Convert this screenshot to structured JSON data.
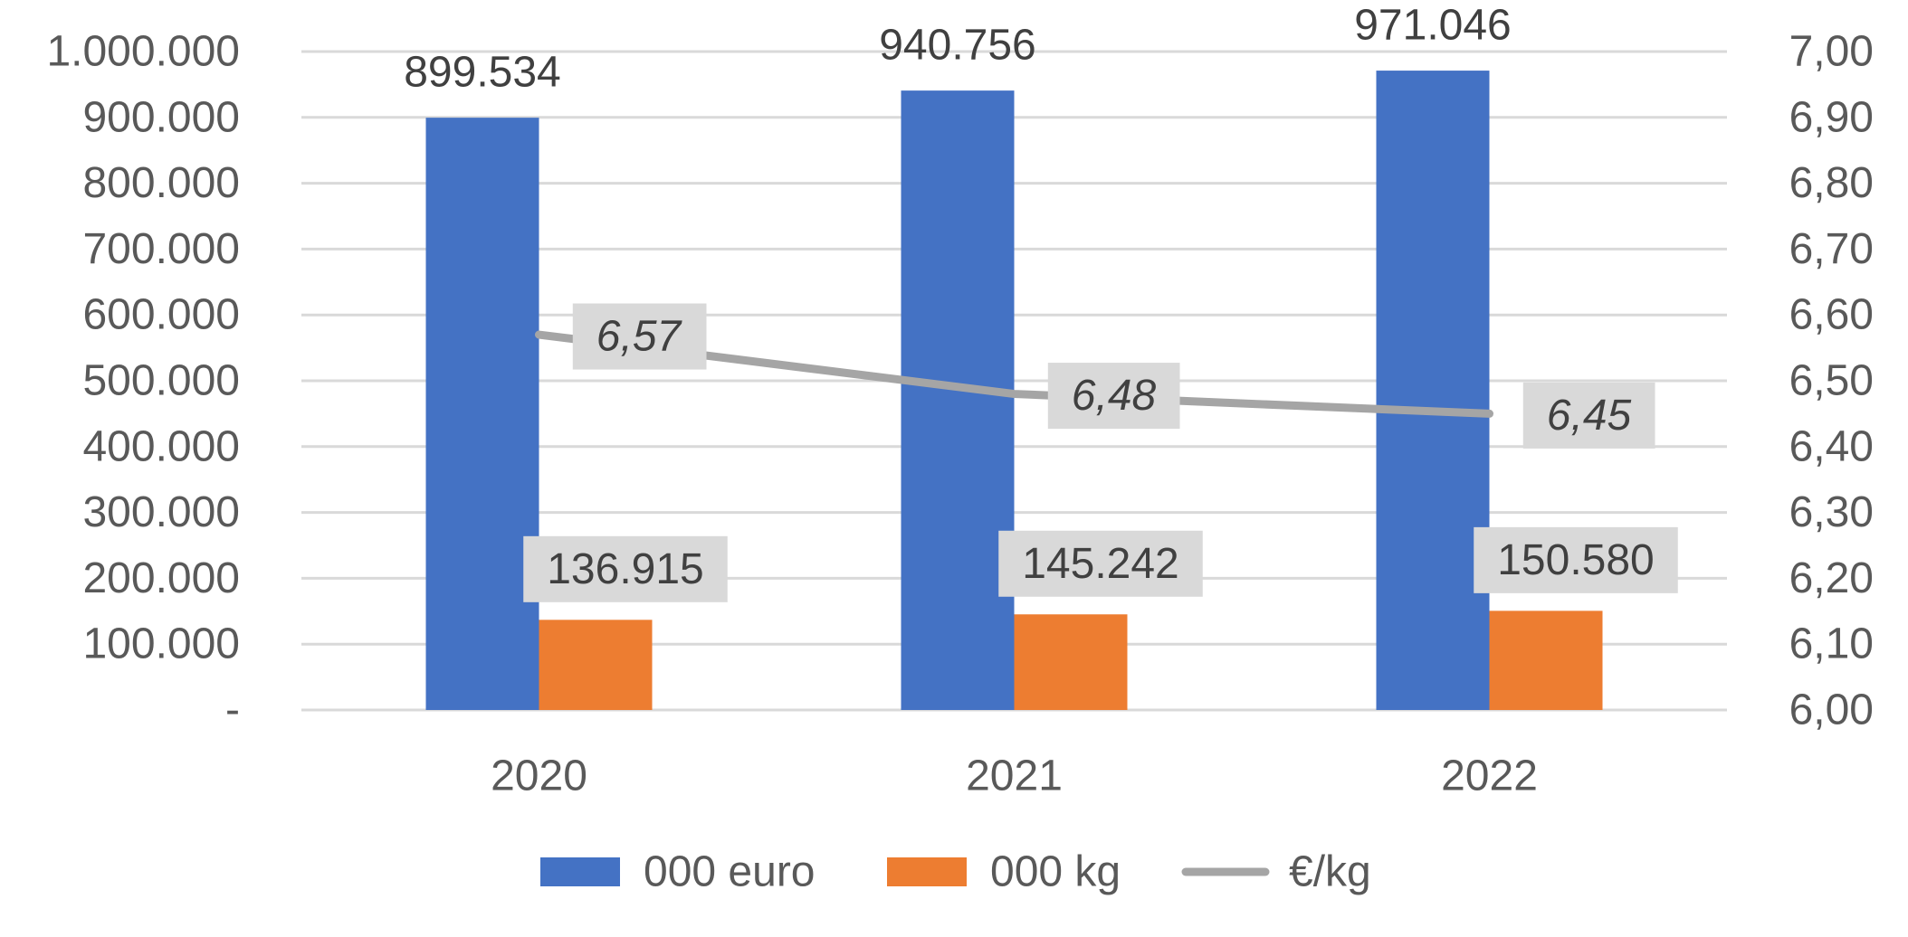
{
  "chart_data": {
    "type": "bar",
    "categories": [
      "2020",
      "2021",
      "2022"
    ],
    "series": [
      {
        "name": "000 euro",
        "kind": "bar",
        "axis": "left",
        "color": "#4472C4",
        "values": [
          899534,
          940756,
          971046
        ],
        "labels": [
          "899.534",
          "940.756",
          "971.046"
        ]
      },
      {
        "name": "000 kg",
        "kind": "bar",
        "axis": "left",
        "color": "#ED7D31",
        "values": [
          136915,
          145242,
          150580
        ],
        "labels": [
          "136.915",
          "145.242",
          "150.580"
        ]
      },
      {
        "name": "€/kg",
        "kind": "line",
        "axis": "right",
        "color": "#A5A5A5",
        "values": [
          6.57,
          6.48,
          6.45
        ],
        "labels": [
          "6,57",
          "6,48",
          "6,45"
        ]
      }
    ],
    "y_left": {
      "range": [
        0,
        1000000
      ],
      "tick_values": [
        0,
        100000,
        200000,
        300000,
        400000,
        500000,
        600000,
        700000,
        800000,
        900000,
        1000000
      ],
      "tick_labels": [
        "-",
        "100.000",
        "200.000",
        "300.000",
        "400.000",
        "500.000",
        "600.000",
        "700.000",
        "800.000",
        "900.000",
        "1.000.000"
      ]
    },
    "y_right": {
      "range": [
        6.0,
        7.0
      ],
      "tick_values": [
        6.0,
        6.1,
        6.2,
        6.3,
        6.4,
        6.5,
        6.6,
        6.7,
        6.8,
        6.9,
        7.0
      ],
      "tick_labels": [
        "6,00",
        "6,10",
        "6,20",
        "6,30",
        "6,40",
        "6,50",
        "6,60",
        "6,70",
        "6,80",
        "6,90",
        "7,00"
      ]
    },
    "grid": true,
    "legend": "bottom-center"
  }
}
